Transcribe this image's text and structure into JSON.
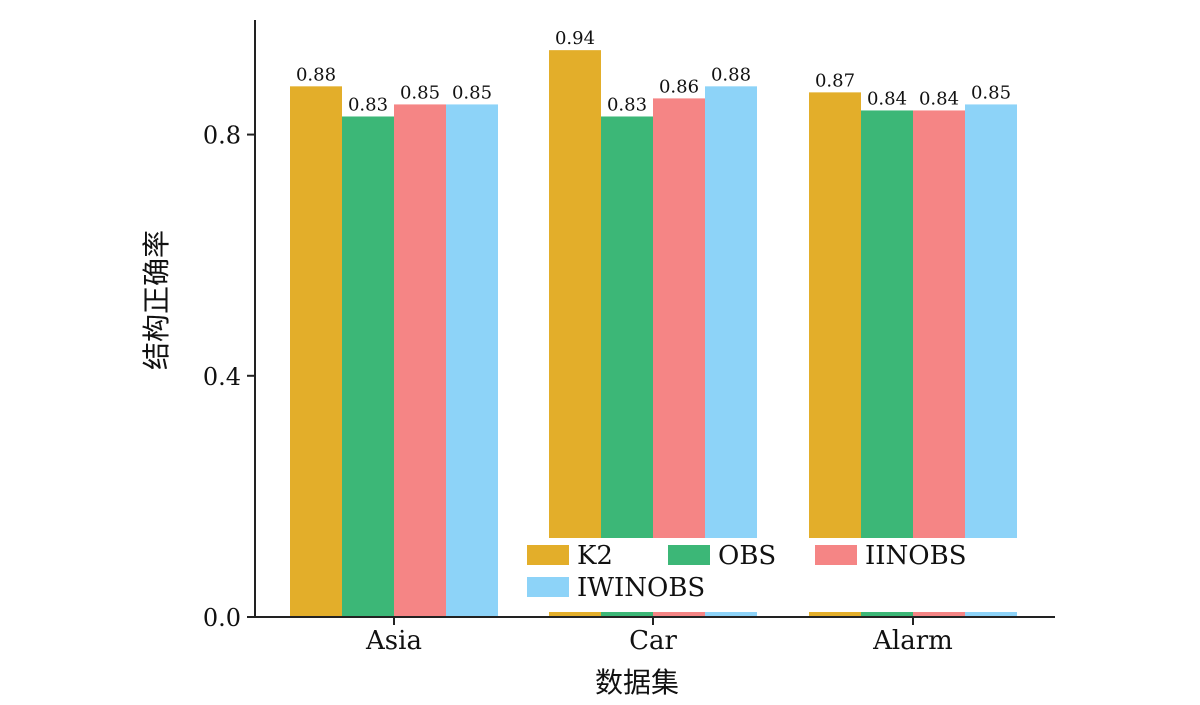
{
  "chart_data": {
    "type": "bar",
    "categories": [
      "Asia",
      "Car",
      "Alarm"
    ],
    "series": [
      {
        "name": "K2",
        "values": [
          0.88,
          0.94,
          0.87
        ],
        "color": "#E3AE2A"
      },
      {
        "name": "OBS",
        "values": [
          0.83,
          0.83,
          0.84
        ],
        "color": "#3CB777"
      },
      {
        "name": "IINOBS",
        "values": [
          0.85,
          0.86,
          0.84
        ],
        "color": "#F58585"
      },
      {
        "name": "IWINOBS",
        "values": [
          0.85,
          0.88,
          0.85
        ],
        "color": "#8DD3F8"
      }
    ],
    "value_labels": [
      [
        "0.88",
        "0.94",
        "0.87"
      ],
      [
        "0.83",
        "0.83",
        "0.84"
      ],
      [
        "0.85",
        "0.86",
        "0.84"
      ],
      [
        "0.85",
        "0.88",
        "0.85"
      ]
    ],
    "ylim": [
      0,
      0.99
    ],
    "yticks": [
      0.0,
      0.4,
      0.8
    ],
    "ytick_labels": [
      "0.0",
      "0.4",
      "0.8"
    ],
    "xlabel": "数据集",
    "ylabel": "结构正确率",
    "legend": {
      "placement": "lower-right",
      "columns": 3
    }
  }
}
